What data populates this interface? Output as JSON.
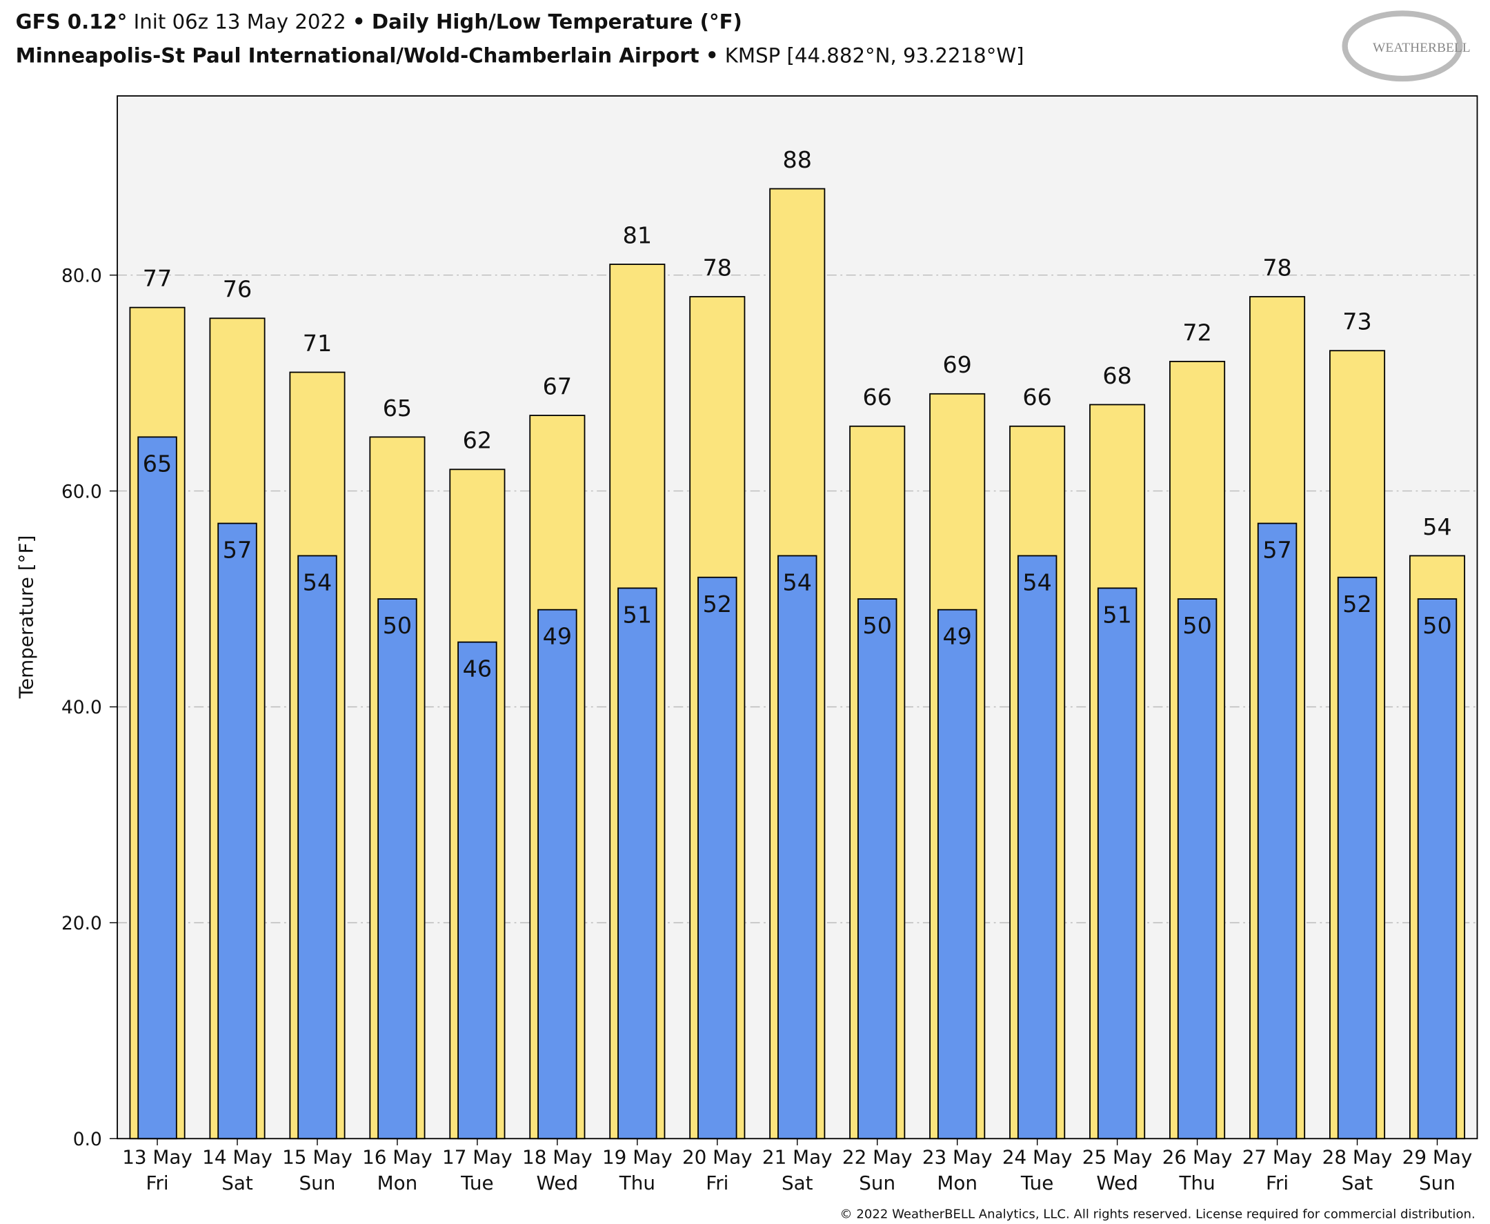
{
  "chart_data": {
    "type": "bar",
    "title_parts": [
      "GFS 0.12°",
      "Init 06z 13 May 2022",
      "•",
      "Daily High/Low Temperature (°F)"
    ],
    "subtitle_parts": [
      "Minneapolis-St Paul International/Wold-Chamberlain Airport",
      "•",
      "KMSP [44.882°N, 93.2218°W]"
    ],
    "logo": "WEATHERBELL",
    "copyright": "© 2022 WeatherBELL Analytics, LLC. All rights reserved. License required for commercial distribution.",
    "y_label": "Temperature [°F]",
    "categories": [
      "13 May",
      "14 May",
      "15 May",
      "16 May",
      "17 May",
      "18 May",
      "19 May",
      "20 May",
      "21 May",
      "22 May",
      "23 May",
      "24 May",
      "25 May",
      "26 May",
      "27 May",
      "28 May",
      "29 May"
    ],
    "weekdays": [
      "Fri",
      "Sat",
      "Sun",
      "Mon",
      "Tue",
      "Wed",
      "Thu",
      "Fri",
      "Sat",
      "Sun",
      "Mon",
      "Tue",
      "Wed",
      "Thu",
      "Fri",
      "Sat",
      "Sun"
    ],
    "series": [
      {
        "name": "High",
        "color": "#fbe47d",
        "values": [
          77,
          76,
          71,
          65,
          62,
          67,
          81,
          78,
          88,
          66,
          69,
          66,
          68,
          72,
          78,
          73,
          54
        ]
      },
      {
        "name": "Low",
        "color": "#6495ed",
        "values": [
          65,
          57,
          54,
          50,
          46,
          49,
          51,
          52,
          54,
          50,
          49,
          54,
          51,
          50,
          57,
          52,
          50
        ]
      }
    ],
    "ylim": [
      0,
      96.6
    ],
    "yticks": [
      {
        "value": 0,
        "label": "0.0"
      },
      {
        "value": 20,
        "label": "20.0"
      },
      {
        "value": 40,
        "label": "40.0"
      },
      {
        "value": 60,
        "label": "60.0"
      },
      {
        "value": 80,
        "label": "80.0"
      }
    ],
    "grid": true
  }
}
